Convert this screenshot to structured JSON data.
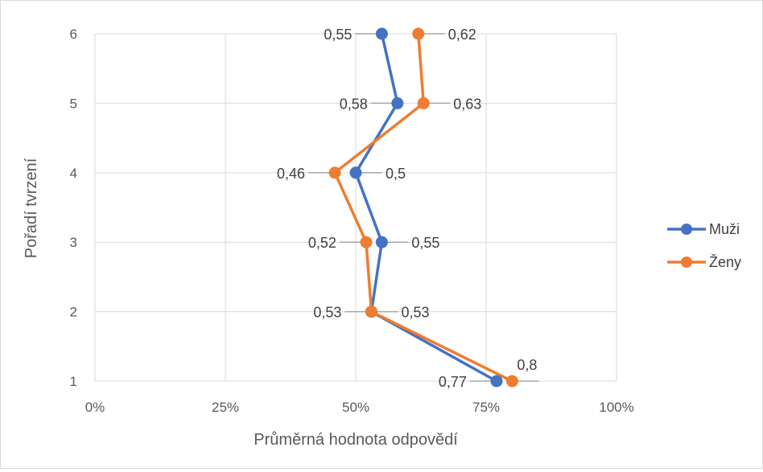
{
  "chart_data": {
    "type": "line",
    "title": "",
    "xlabel": "Průměrná hodnota odpovědí",
    "ylabel": "Pořadí tvrzení",
    "xlim": [
      0,
      1
    ],
    "ylim": [
      1,
      6
    ],
    "x_ticks": [
      "0%",
      "25%",
      "50%",
      "75%",
      "100%"
    ],
    "y_ticks": [
      "1",
      "2",
      "3",
      "4",
      "5",
      "6"
    ],
    "grid": true,
    "legend_position": "right",
    "series": [
      {
        "name": "Muži",
        "color": "#4472C4",
        "y": [
          1,
          2,
          3,
          4,
          5,
          6
        ],
        "values": [
          0.77,
          0.53,
          0.55,
          0.5,
          0.58,
          0.55
        ],
        "labels": [
          "0,77",
          "0,53",
          "0,55",
          "0,5",
          "0,58",
          "0,55"
        ]
      },
      {
        "name": "Ženy",
        "color": "#ED7D31",
        "y": [
          1,
          2,
          3,
          4,
          5,
          6
        ],
        "values": [
          0.8,
          0.53,
          0.52,
          0.46,
          0.63,
          0.62
        ],
        "labels": [
          "0,8",
          "0,53",
          "0,52",
          "0,46",
          "0,63",
          "0,62"
        ]
      }
    ]
  }
}
